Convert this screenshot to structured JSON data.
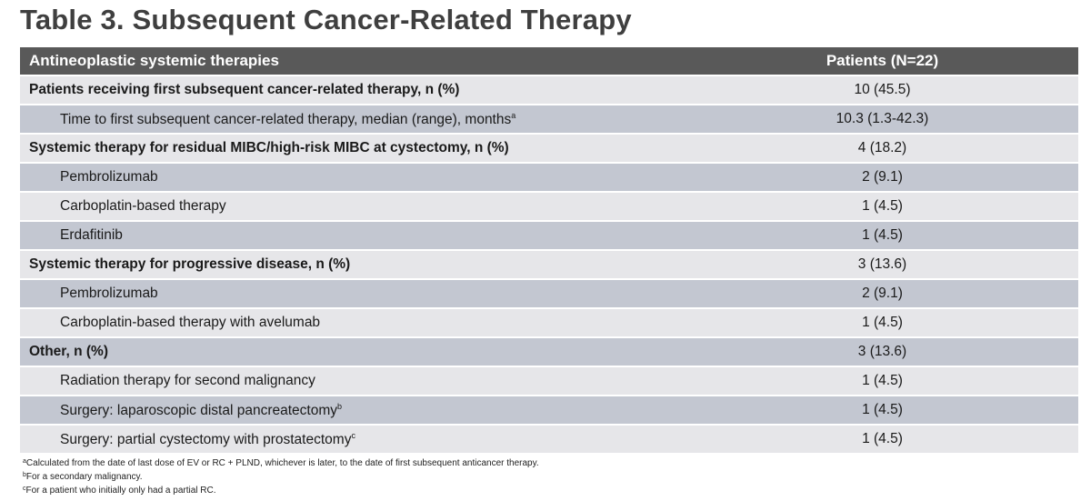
{
  "title": "Table 3. Subsequent Cancer-Related Therapy",
  "header": {
    "col1": "Antineoplastic systemic therapies",
    "col2": "Patients (N=22)"
  },
  "rows": [
    {
      "label": "Patients receiving first subsequent cancer-related therapy, n (%)",
      "sup": "",
      "value": "10 (45.5)",
      "bold": true
    },
    {
      "label": "Time to first subsequent cancer-related therapy, median (range), months",
      "sup": "a",
      "value": "10.3 (1.3-42.3)",
      "bold": false
    },
    {
      "label": "Systemic therapy for residual MIBC/high-risk MIBC at cystectomy, n (%)",
      "sup": "",
      "value": "4 (18.2)",
      "bold": true
    },
    {
      "label": "Pembrolizumab",
      "sup": "",
      "value": "2 (9.1)",
      "bold": false
    },
    {
      "label": "Carboplatin-based therapy",
      "sup": "",
      "value": "1 (4.5)",
      "bold": false
    },
    {
      "label": "Erdafitinib",
      "sup": "",
      "value": "1 (4.5)",
      "bold": false
    },
    {
      "label": "Systemic therapy for progressive disease, n (%)",
      "sup": "",
      "value": "3 (13.6)",
      "bold": true
    },
    {
      "label": "Pembrolizumab",
      "sup": "",
      "value": "2 (9.1)",
      "bold": false
    },
    {
      "label": "Carboplatin-based therapy with avelumab",
      "sup": "",
      "value": "1 (4.5)",
      "bold": false
    },
    {
      "label": "Other, n (%)",
      "sup": "",
      "value": "3 (13.6)",
      "bold": true
    },
    {
      "label": "Radiation therapy for second malignancy",
      "sup": "",
      "value": "1 (4.5)",
      "bold": false
    },
    {
      "label": "Surgery: laparoscopic distal pancreatectomy",
      "sup": "b",
      "value": "1 (4.5)",
      "bold": false
    },
    {
      "label": "Surgery: partial cystectomy with prostatectomy",
      "sup": "c",
      "value": "1 (4.5)",
      "bold": false
    }
  ],
  "footnotes": [
    {
      "sup": "a",
      "text": "Calculated from the date of last dose of EV or RC + PLND, whichever is later, to the date of first subsequent anticancer therapy."
    },
    {
      "sup": "b",
      "text": "For a secondary malignancy."
    },
    {
      "sup": "c",
      "text": "For a patient who initially only had a partial RC."
    }
  ]
}
